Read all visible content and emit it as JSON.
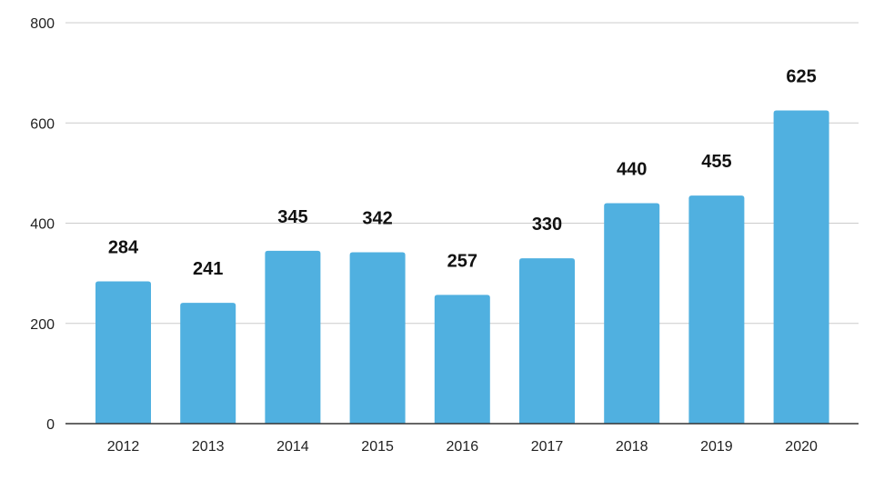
{
  "chart_data": {
    "type": "bar",
    "title": "",
    "xlabel": "",
    "ylabel": "",
    "categories": [
      "2012",
      "2013",
      "2014",
      "2015",
      "2016",
      "2017",
      "2018",
      "2019",
      "2020"
    ],
    "values": [
      284,
      241,
      345,
      342,
      257,
      330,
      440,
      455,
      625
    ],
    "ylim": [
      0,
      800
    ],
    "yticks": [
      0,
      200,
      400,
      600,
      800
    ],
    "grid": true,
    "legend": "none",
    "bar_color": "#50B0E0",
    "grid_color": "#CCCCCC"
  }
}
